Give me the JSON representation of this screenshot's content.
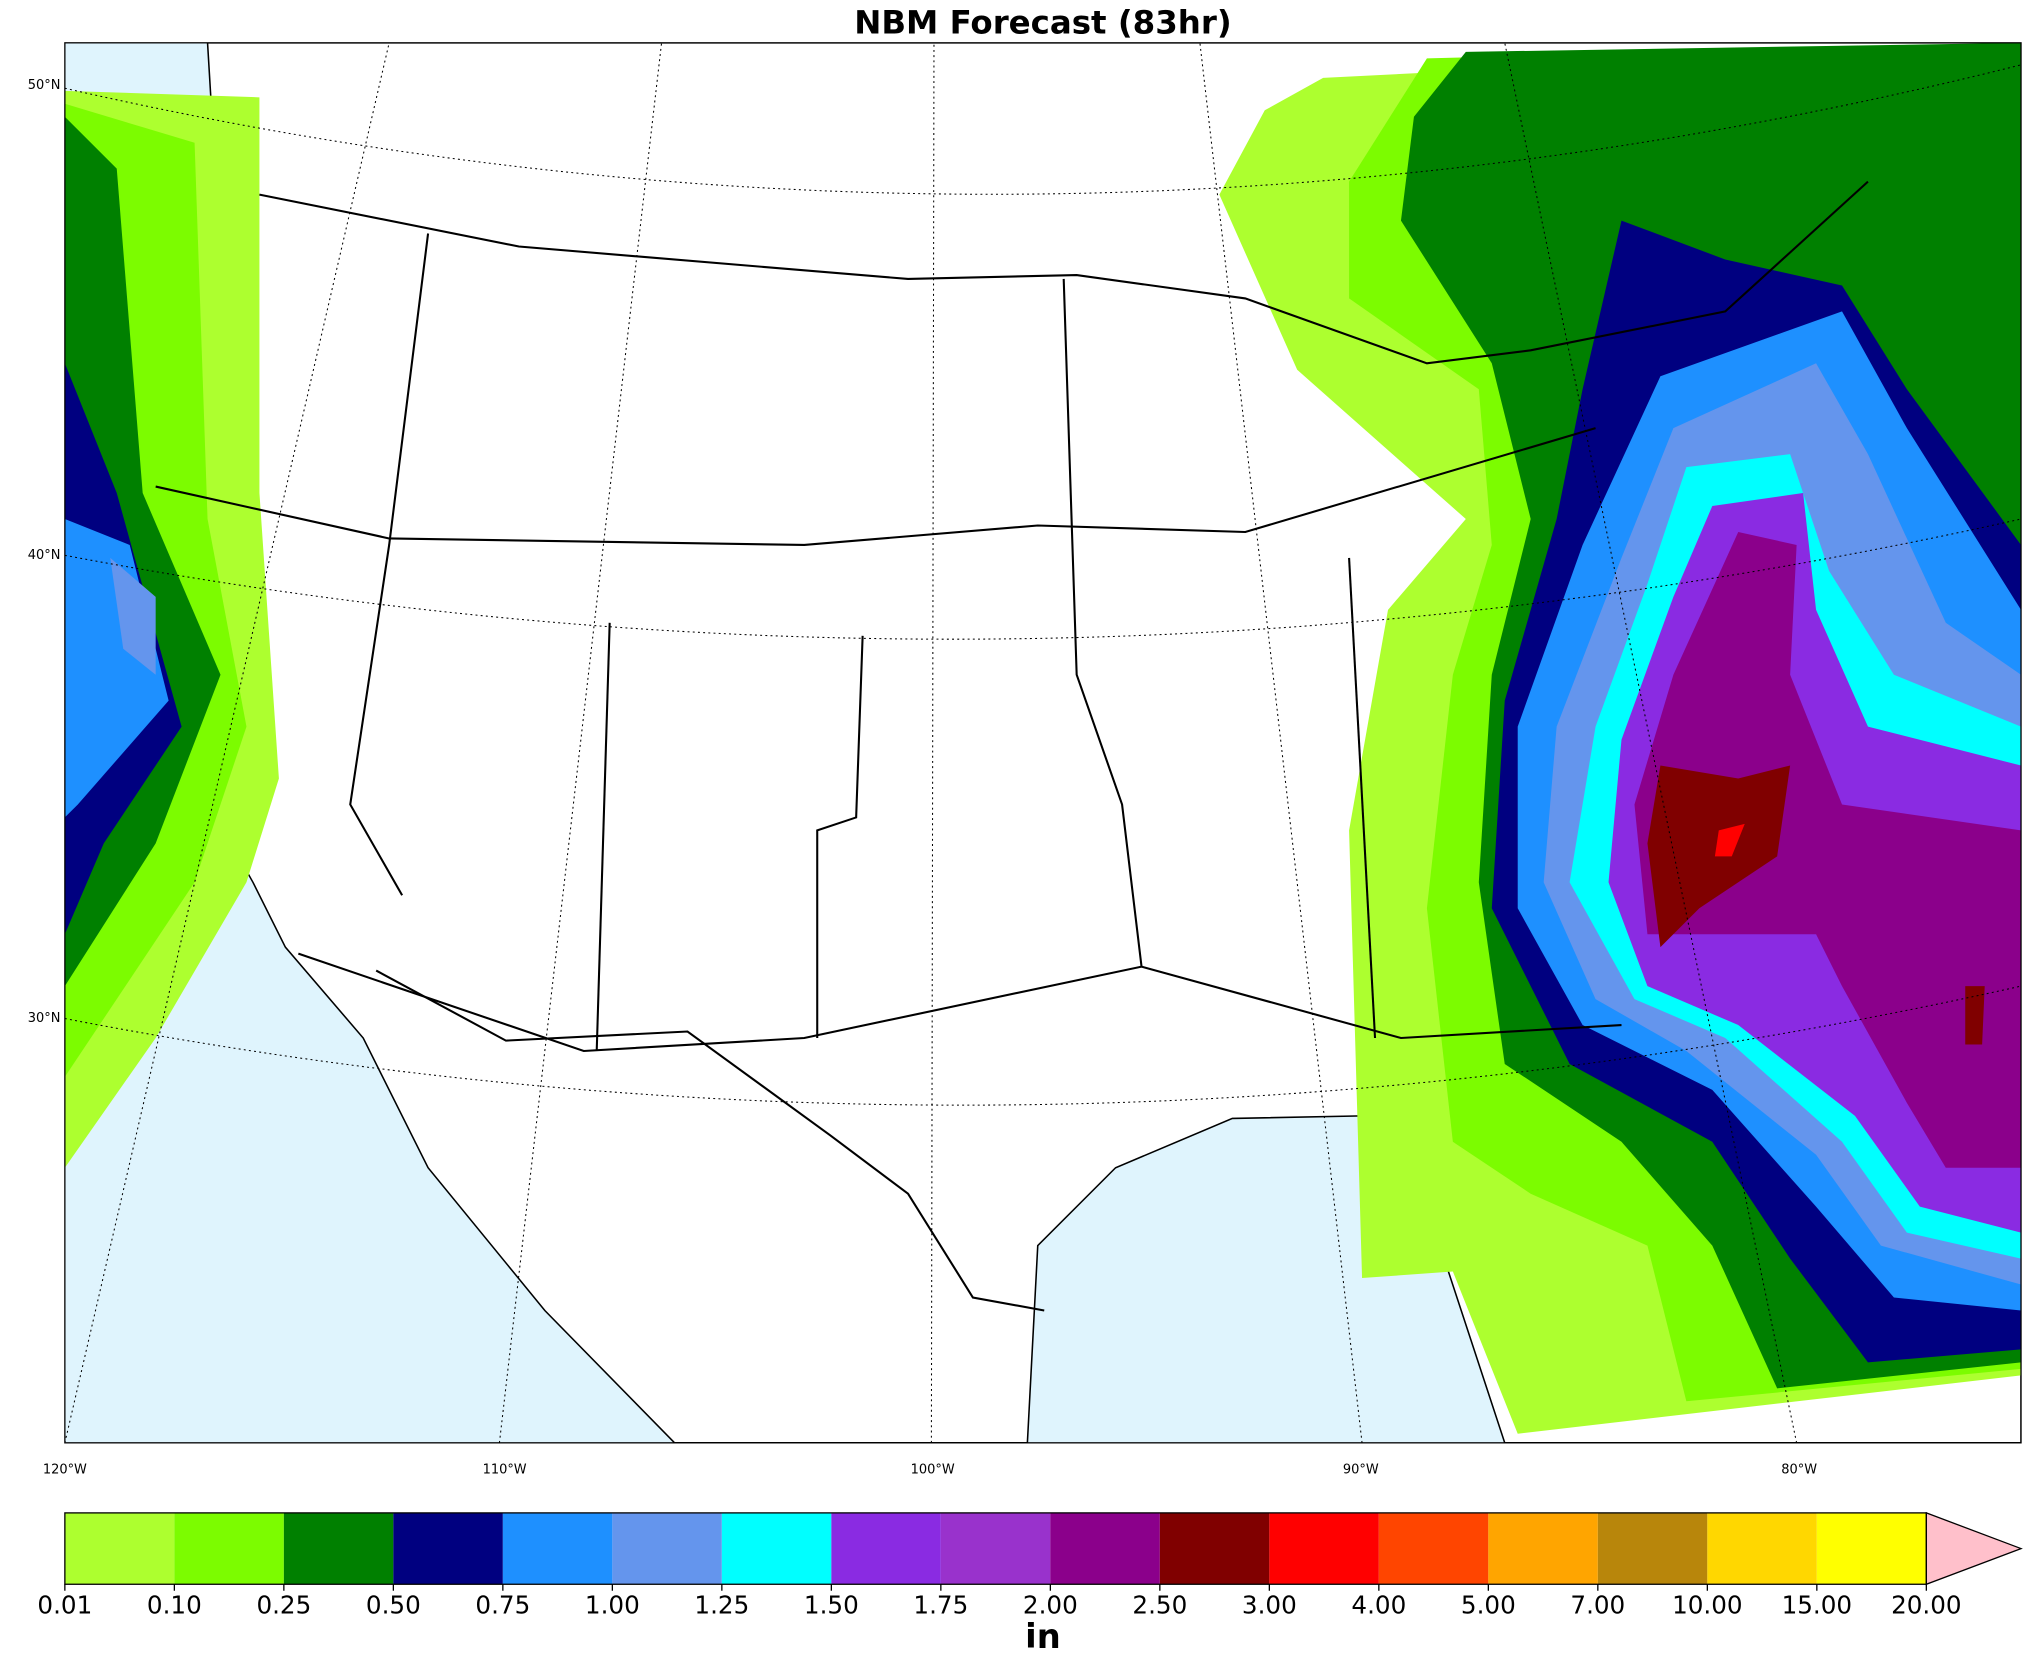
{
  "title": "NBM Forecast (83hr)",
  "map": {
    "lat_labels": [
      "50°N",
      "40°N",
      "30°N"
    ],
    "lon_labels": [
      "120°W",
      "110°W",
      "100°W",
      "90°W",
      "80°W"
    ]
  },
  "colorbar": {
    "ticks": [
      "0.01",
      "0.10",
      "0.25",
      "0.50",
      "0.75",
      "1.00",
      "1.25",
      "1.50",
      "1.75",
      "2.00",
      "2.50",
      "3.00",
      "4.00",
      "5.00",
      "7.00",
      "10.00",
      "15.00",
      "20.00"
    ],
    "colors": [
      "#adff2f",
      "#7cfc00",
      "#008000",
      "#000080",
      "#1e90ff",
      "#6495ed",
      "#00ffff",
      "#8a2be2",
      "#9932cc",
      "#8b008b",
      "#800000",
      "#ff0000",
      "#ff4500",
      "#ffa500",
      "#b8860b",
      "#ffd700",
      "#ffff00"
    ],
    "extend_color": "#ffc0cb",
    "label": "in"
  }
}
